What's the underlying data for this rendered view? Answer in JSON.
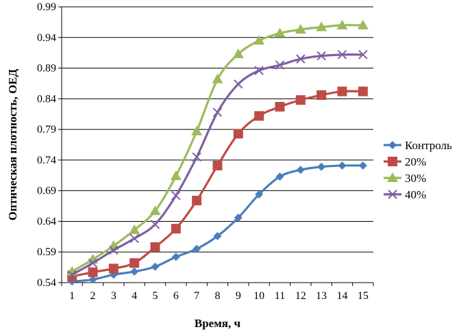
{
  "chart_data": {
    "type": "line",
    "xlabel": "Время, ч",
    "ylabel": "Оптическая плотность, ОЕД",
    "x": [
      1,
      2,
      3,
      4,
      5,
      6,
      7,
      8,
      9,
      10,
      11,
      12,
      13,
      14,
      15
    ],
    "x_tick_labels": [
      "1",
      "2",
      "3",
      "4",
      "5",
      "6",
      "7",
      "8",
      "9",
      "10",
      "11",
      "12",
      "13",
      "14",
      "15"
    ],
    "ylim": [
      0.54,
      0.99
    ],
    "y_ticks": [
      0.54,
      0.59,
      0.64,
      0.69,
      0.74,
      0.79,
      0.84,
      0.89,
      0.94,
      0.99
    ],
    "y_tick_labels": [
      "0.54",
      "0.59",
      "0.64",
      "0.69",
      "0.74",
      "0.79",
      "0.84",
      "0.89",
      "0.94",
      "0.99"
    ],
    "grid": "horizontal",
    "legend_position": "right",
    "series": [
      {
        "name": "Контроль",
        "color": "#4a7ebb",
        "marker": "diamond",
        "values": [
          0.542,
          0.545,
          0.553,
          0.558,
          0.566,
          0.582,
          0.595,
          0.616,
          0.646,
          0.684,
          0.713,
          0.724,
          0.729,
          0.731,
          0.731
        ]
      },
      {
        "name": "20%",
        "color": "#be4b48",
        "marker": "square",
        "values": [
          0.55,
          0.557,
          0.563,
          0.572,
          0.598,
          0.628,
          0.674,
          0.731,
          0.783,
          0.812,
          0.827,
          0.838,
          0.846,
          0.852,
          0.852
        ]
      },
      {
        "name": "30%",
        "color": "#9bbb59",
        "marker": "triangle",
        "values": [
          0.558,
          0.578,
          0.6,
          0.626,
          0.657,
          0.714,
          0.787,
          0.872,
          0.913,
          0.935,
          0.947,
          0.953,
          0.957,
          0.96,
          0.96
        ]
      },
      {
        "name": "40%",
        "color": "#7e5fa1",
        "marker": "x",
        "values": [
          0.553,
          0.572,
          0.593,
          0.612,
          0.635,
          0.682,
          0.745,
          0.818,
          0.864,
          0.886,
          0.895,
          0.905,
          0.91,
          0.912,
          0.912
        ]
      }
    ]
  }
}
